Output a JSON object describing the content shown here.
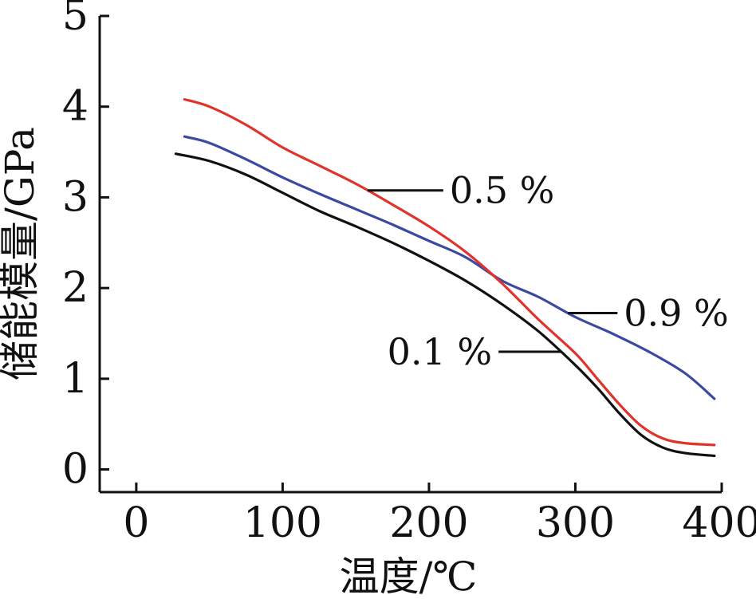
{
  "chart_data": {
    "type": "line",
    "xlabel": "温度/℃",
    "ylabel": "储能模量/GPa",
    "xlim": [
      -25,
      400
    ],
    "ylim": [
      -0.25,
      5
    ],
    "x_ticks": [
      0,
      100,
      200,
      300,
      400
    ],
    "y_ticks": [
      0,
      1,
      2,
      3,
      4,
      5
    ],
    "grid": false,
    "legend": "inline labels",
    "series": [
      {
        "name": "0.1 %",
        "color": "#111111",
        "x": [
          27,
          50,
          75,
          100,
          125,
          150,
          175,
          200,
          225,
          250,
          275,
          300,
          315,
          330,
          345,
          360,
          375,
          395
        ],
        "y": [
          3.48,
          3.4,
          3.25,
          3.05,
          2.85,
          2.68,
          2.5,
          2.3,
          2.08,
          1.82,
          1.52,
          1.15,
          0.9,
          0.62,
          0.38,
          0.24,
          0.18,
          0.15
        ]
      },
      {
        "name": "0.5 %",
        "color": "#e0332b",
        "x": [
          33,
          50,
          75,
          100,
          125,
          150,
          175,
          200,
          225,
          250,
          275,
          300,
          315,
          330,
          345,
          360,
          375,
          395
        ],
        "y": [
          4.08,
          4.0,
          3.8,
          3.55,
          3.35,
          3.15,
          2.92,
          2.68,
          2.4,
          2.05,
          1.65,
          1.28,
          1.0,
          0.72,
          0.48,
          0.34,
          0.29,
          0.27
        ]
      },
      {
        "name": "0.9 %",
        "color": "#3b4aa0",
        "x": [
          33,
          50,
          75,
          100,
          125,
          150,
          175,
          200,
          225,
          250,
          275,
          300,
          325,
          350,
          375,
          395
        ],
        "y": [
          3.67,
          3.6,
          3.42,
          3.22,
          3.04,
          2.87,
          2.7,
          2.52,
          2.34,
          2.08,
          1.9,
          1.68,
          1.5,
          1.3,
          1.06,
          0.78
        ]
      }
    ],
    "annotations": [
      {
        "text": "0.5 %",
        "series": "0.5 %",
        "at_x": 158
      },
      {
        "text": "0.9 %",
        "series": "0.9 %",
        "at_x": 295
      },
      {
        "text": "0.1 %",
        "series": "0.1 %",
        "at_x": 290
      }
    ]
  }
}
